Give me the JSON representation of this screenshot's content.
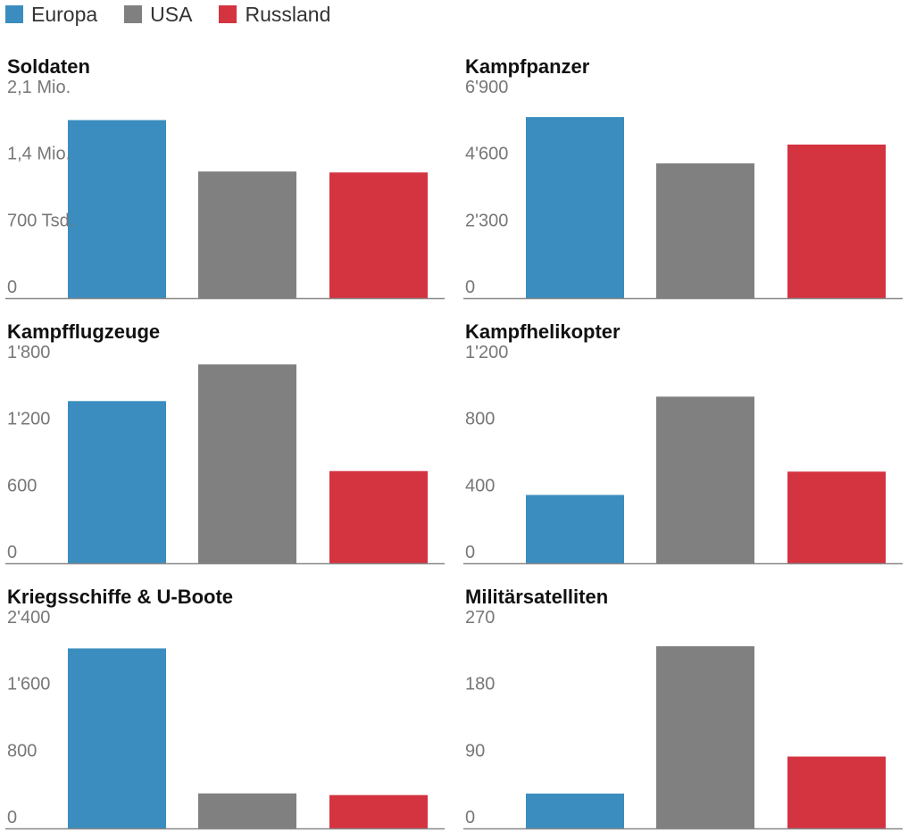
{
  "legend": [
    {
      "name": "Europa",
      "color": "#3a8dbe"
    },
    {
      "name": "USA",
      "color": "#808080"
    },
    {
      "name": "Russland",
      "color": "#d43340"
    }
  ],
  "chart_data": [
    {
      "type": "bar",
      "title": "Soldaten",
      "categories": [
        "Europa",
        "USA",
        "Russland"
      ],
      "values": [
        1870000,
        1330000,
        1320000
      ],
      "ylim": [
        0,
        2100000
      ],
      "yticks": [
        0,
        700000,
        1400000,
        2100000
      ],
      "ytick_labels": [
        "0",
        "700 Tsd.",
        "1,4 Mio.",
        "2,1 Mio."
      ],
      "grid": false
    },
    {
      "type": "bar",
      "title": "Kampfpanzer",
      "categories": [
        "Europa",
        "USA",
        "Russland"
      ],
      "values": [
        6250,
        4650,
        5300
      ],
      "ylim": [
        0,
        6900
      ],
      "yticks": [
        0,
        2300,
        4600,
        6900
      ],
      "ytick_labels": [
        "0",
        "2'300",
        "4'600",
        "6'900"
      ],
      "grid": false
    },
    {
      "type": "bar",
      "title": "Kampfflugzeuge",
      "categories": [
        "Europa",
        "USA",
        "Russland"
      ],
      "values": [
        1460,
        1790,
        830
      ],
      "ylim": [
        0,
        1800
      ],
      "yticks": [
        0,
        600,
        1200,
        1800
      ],
      "ytick_labels": [
        "0",
        "600",
        "1'200",
        "1'800"
      ],
      "grid": false
    },
    {
      "type": "bar",
      "title": "Kampfhelikopter",
      "categories": [
        "Europa",
        "USA",
        "Russland"
      ],
      "values": [
        410,
        1000,
        550
      ],
      "ylim": [
        0,
        1200
      ],
      "yticks": [
        0,
        400,
        800,
        1200
      ],
      "ytick_labels": [
        "0",
        "400",
        "800",
        "1'200"
      ],
      "grid": false
    },
    {
      "type": "bar",
      "title": "Kriegsschiffe & U-Boote",
      "categories": [
        "Europa",
        "USA",
        "Russland"
      ],
      "values": [
        2160,
        420,
        400
      ],
      "ylim": [
        0,
        2400
      ],
      "yticks": [
        0,
        800,
        1600,
        2400
      ],
      "ytick_labels": [
        "0",
        "800",
        "1'600",
        "2'400"
      ],
      "grid": false
    },
    {
      "type": "bar",
      "title": "Militärsatelliten",
      "categories": [
        "Europa",
        "USA",
        "Russland"
      ],
      "values": [
        47,
        246,
        97
      ],
      "ylim": [
        0,
        270
      ],
      "yticks": [
        0,
        90,
        180,
        270
      ],
      "ytick_labels": [
        "0",
        "90",
        "180",
        "270"
      ],
      "grid": false
    }
  ]
}
